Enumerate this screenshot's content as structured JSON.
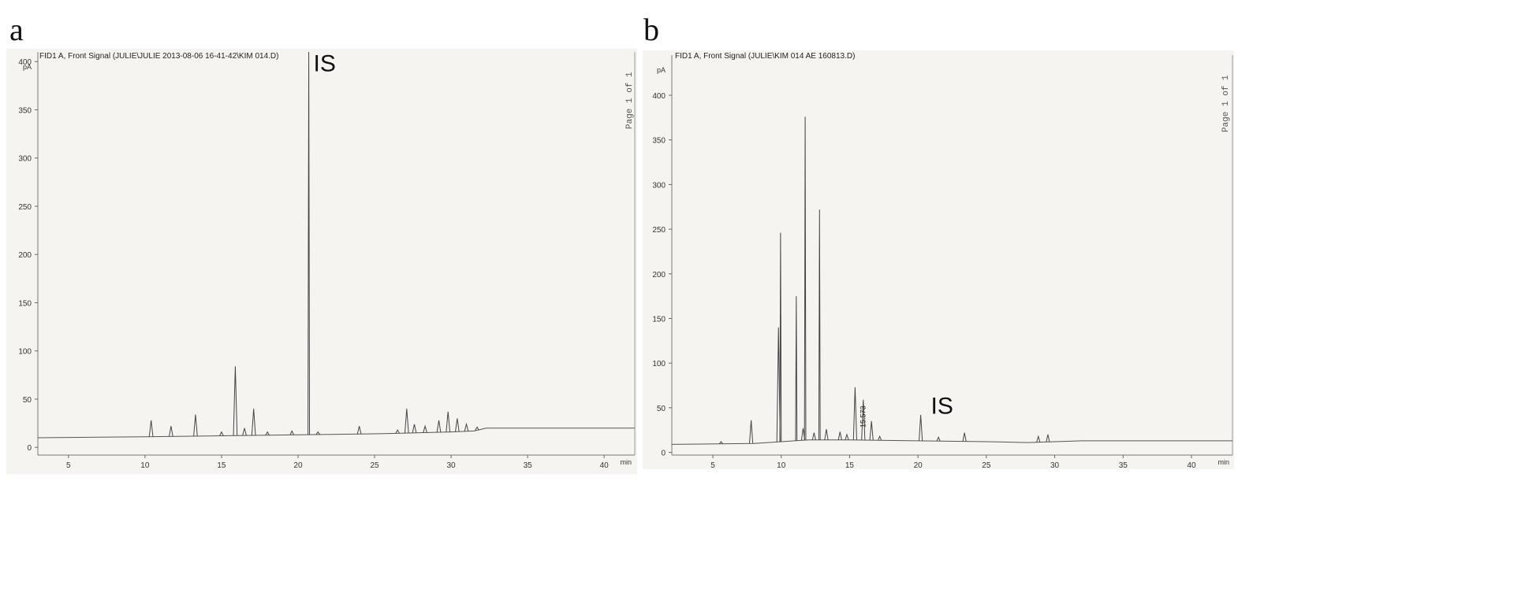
{
  "panels": [
    {
      "letter": "a",
      "header": "FID1 A, Front Signal (JULIE\\JULIE 2013-08-06 16-41-42\\KIM 014.D)",
      "page_note": "Page  1 of 1"
    },
    {
      "letter": "b",
      "header": "FID1 A, Front Signal (JULIE\\KIM 014 AE 160813.D)",
      "page_note": "Page  1 of 1"
    }
  ],
  "chart_data": [
    {
      "type": "line",
      "xunit": "min",
      "yunit": "pA",
      "xlim": [
        3,
        42
      ],
      "ylim": [
        -8,
        410
      ],
      "xticks": [
        5,
        10,
        15,
        20,
        25,
        30,
        35,
        40
      ],
      "yticks": [
        0,
        50,
        100,
        150,
        200,
        250,
        300,
        350,
        400
      ],
      "baseline": [
        [
          3,
          10
        ],
        [
          10,
          11
        ],
        [
          15,
          12
        ],
        [
          20,
          13
        ],
        [
          25,
          14
        ],
        [
          30,
          16
        ],
        [
          31.5,
          17
        ],
        [
          32.3,
          20
        ],
        [
          36,
          20
        ],
        [
          42,
          20
        ]
      ],
      "peaks": [
        [
          10.4,
          28
        ],
        [
          11.7,
          22
        ],
        [
          13.3,
          34
        ],
        [
          15.0,
          16
        ],
        [
          15.9,
          84
        ],
        [
          16.5,
          20
        ],
        [
          17.1,
          40
        ],
        [
          18.0,
          16
        ],
        [
          19.6,
          17
        ],
        [
          20.7,
          410
        ],
        [
          21.3,
          16
        ],
        [
          24.0,
          22
        ],
        [
          26.5,
          18
        ],
        [
          27.1,
          40
        ],
        [
          27.6,
          24
        ],
        [
          28.3,
          22
        ],
        [
          29.2,
          28
        ],
        [
          29.8,
          37
        ],
        [
          30.4,
          30
        ],
        [
          31.0,
          24
        ],
        [
          31.7,
          21
        ]
      ],
      "annotations": [
        {
          "text": "IS",
          "x": 20.7,
          "y": 398
        }
      ],
      "grid": false
    },
    {
      "type": "line",
      "xunit": "min",
      "yunit": "pA",
      "xlim": [
        2,
        43
      ],
      "ylim": [
        -3,
        445
      ],
      "xticks": [
        5,
        10,
        15,
        20,
        25,
        30,
        35,
        40
      ],
      "yticks": [
        0,
        50,
        100,
        150,
        200,
        250,
        300,
        350,
        400
      ],
      "baseline": [
        [
          2,
          9
        ],
        [
          8,
          10
        ],
        [
          10,
          12
        ],
        [
          12,
          14
        ],
        [
          15,
          14
        ],
        [
          20,
          13
        ],
        [
          25,
          12
        ],
        [
          28,
          11
        ],
        [
          32,
          13
        ],
        [
          43,
          13
        ]
      ],
      "peaks": [
        [
          5.6,
          12
        ],
        [
          7.8,
          36
        ],
        [
          9.8,
          140
        ],
        [
          9.95,
          246
        ],
        [
          11.1,
          175
        ],
        [
          11.6,
          27
        ],
        [
          11.75,
          376
        ],
        [
          12.4,
          22
        ],
        [
          12.8,
          272
        ],
        [
          13.3,
          26
        ],
        [
          14.3,
          23
        ],
        [
          14.8,
          20
        ],
        [
          15.4,
          73
        ],
        [
          16.0,
          59
        ],
        [
          16.6,
          35
        ],
        [
          17.2,
          18
        ],
        [
          20.2,
          42
        ],
        [
          21.5,
          17
        ],
        [
          23.4,
          22
        ],
        [
          28.8,
          18
        ],
        [
          29.5,
          20
        ]
      ],
      "annotations": [
        {
          "text": "IS",
          "x": 20.6,
          "y": 52
        },
        {
          "text": "15.573",
          "x": 15.573,
          "y": 40
        }
      ],
      "grid": false
    }
  ]
}
